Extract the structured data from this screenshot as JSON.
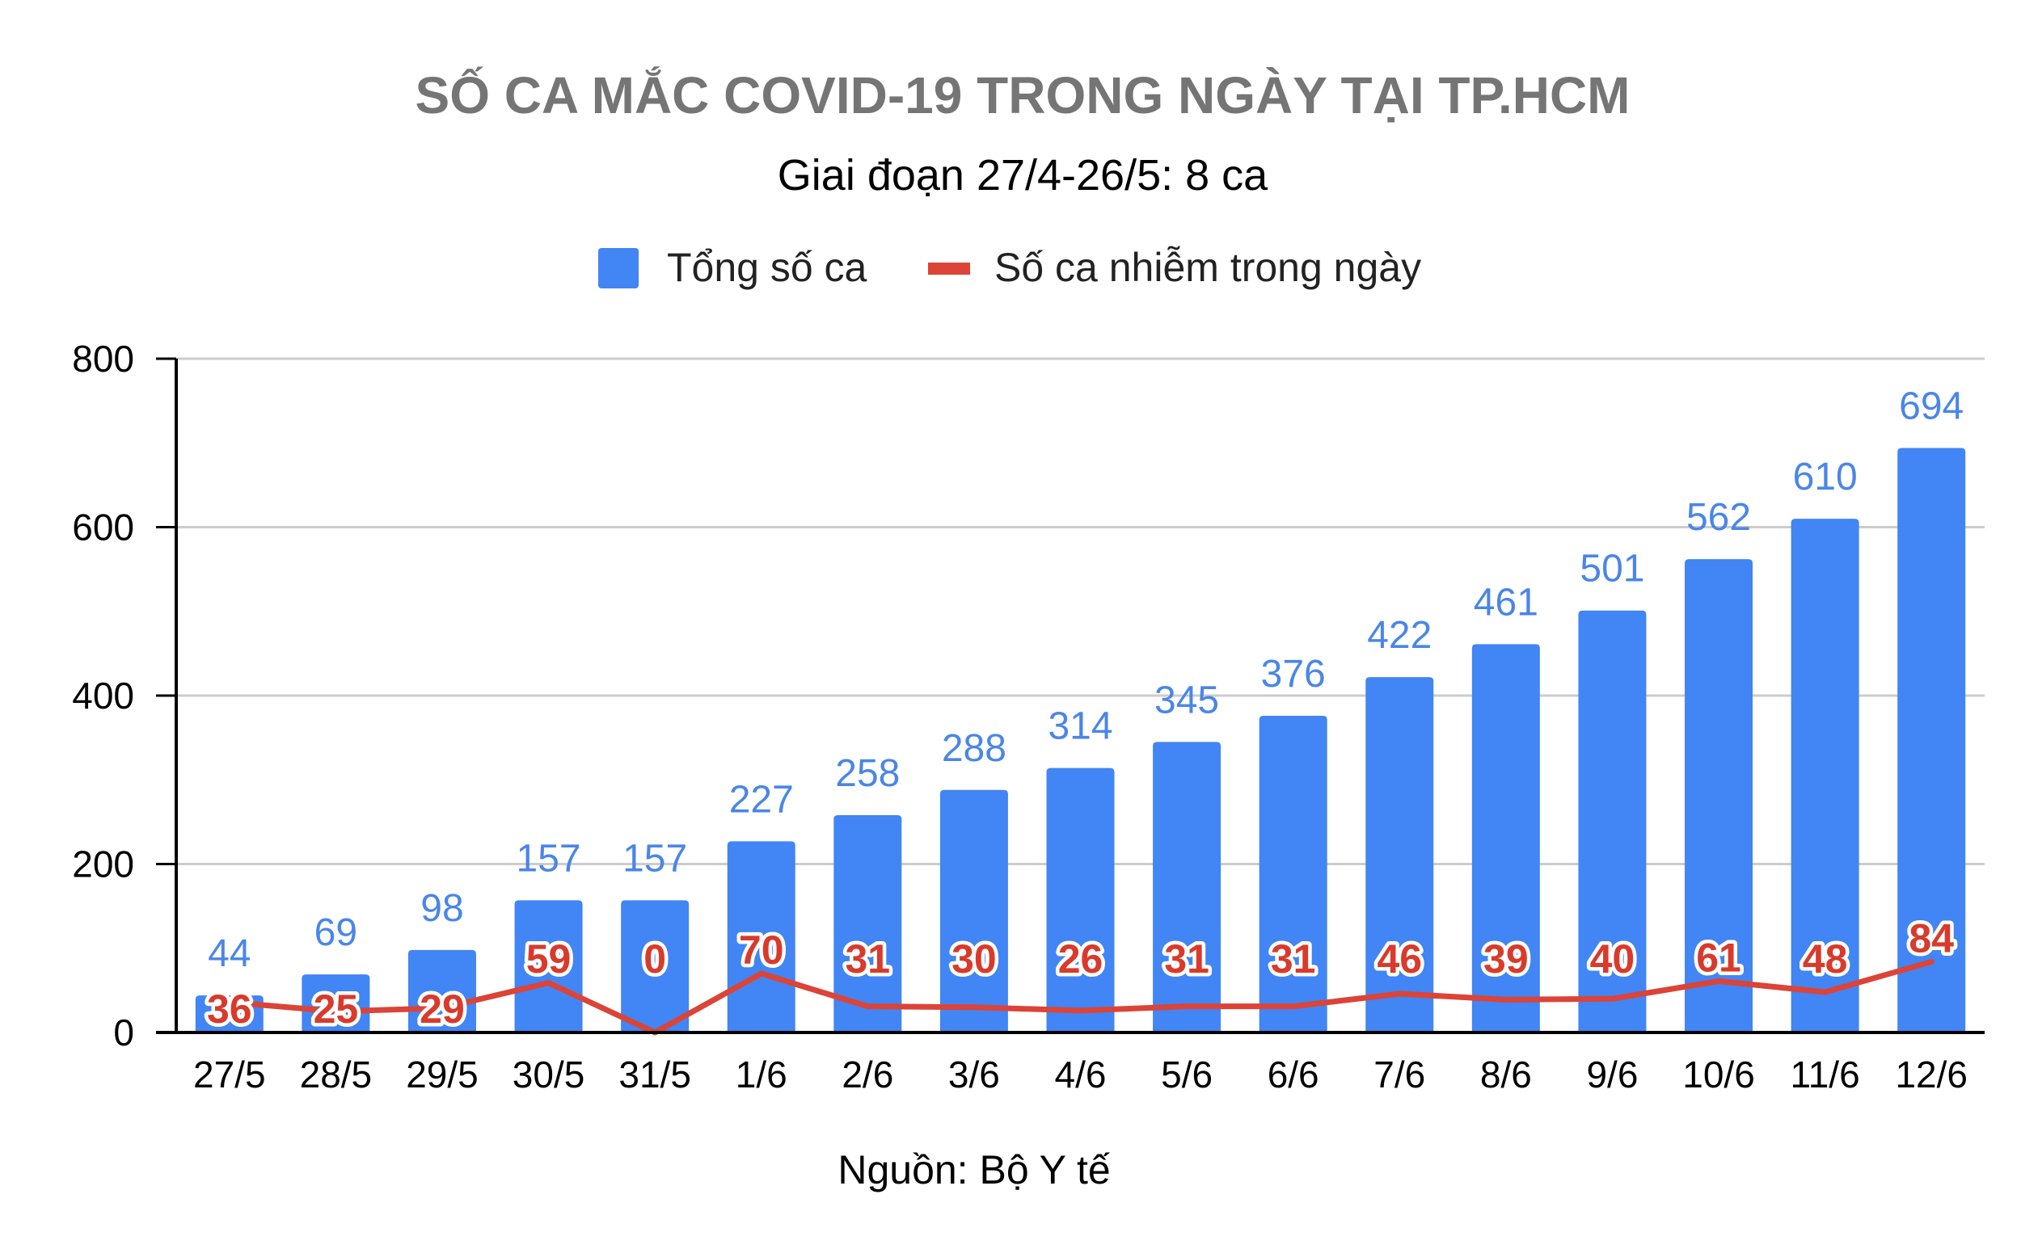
{
  "chart_data": {
    "type": "bar",
    "title": "SỐ CA MẮC COVID-19 TRONG NGÀY TẠI TP.HCM",
    "subtitle": "Giai đoạn 27/4-26/5: 8 ca",
    "source": "Nguồn: Bộ Y tế",
    "categories": [
      "27/5",
      "28/5",
      "29/5",
      "30/5",
      "31/5",
      "1/6",
      "2/6",
      "3/6",
      "4/6",
      "5/6",
      "6/6",
      "7/6",
      "8/6",
      "9/6",
      "10/6",
      "11/6",
      "12/6"
    ],
    "series": [
      {
        "name": "Tổng số ca",
        "type": "bar",
        "color": "#4285f4",
        "values": [
          44,
          69,
          98,
          157,
          157,
          227,
          258,
          288,
          314,
          345,
          376,
          422,
          461,
          501,
          562,
          610,
          694
        ]
      },
      {
        "name": "Số ca nhiễm trong ngày",
        "type": "line",
        "color": "#db4437",
        "values": [
          36,
          25,
          29,
          59,
          0,
          70,
          31,
          30,
          26,
          31,
          31,
          46,
          39,
          40,
          61,
          48,
          84
        ]
      }
    ],
    "ylim": [
      0,
      800
    ],
    "yticks": [
      0,
      200,
      400,
      600,
      800
    ],
    "grid": true,
    "legend_position": "top"
  }
}
